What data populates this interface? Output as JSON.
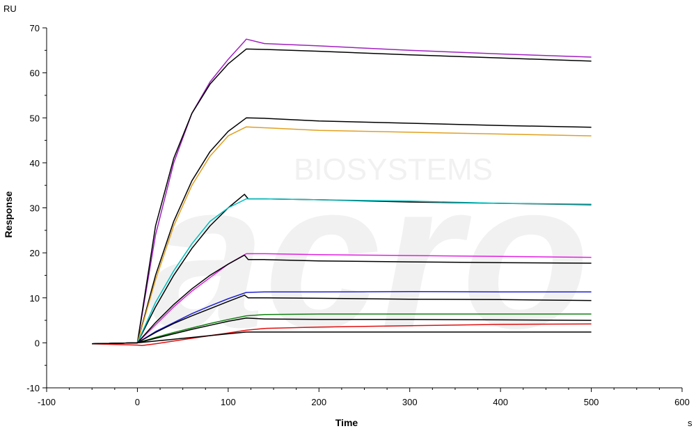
{
  "chart_data": {
    "type": "line",
    "xlabel": "Time",
    "ylabel": "Response",
    "x_unit": "s",
    "y_unit": "RU",
    "xlim": [
      -100,
      600
    ],
    "ylim": [
      -10,
      70
    ],
    "x_ticks": [
      -100,
      0,
      100,
      200,
      300,
      400,
      500,
      600
    ],
    "y_ticks": [
      -10,
      0,
      10,
      20,
      30,
      40,
      50,
      60,
      70
    ],
    "grid": false,
    "watermark": {
      "text": "BIOSYSTEMS",
      "logo": "acro"
    },
    "series": [
      {
        "color": "#a020c0",
        "x": [
          -50,
          0,
          20,
          40,
          60,
          80,
          100,
          118,
          120,
          140,
          200,
          300,
          400,
          500
        ],
        "y": [
          -0.2,
          0,
          24,
          40,
          51,
          58,
          63,
          67,
          67.5,
          66.5,
          66,
          65,
          64.2,
          63.5
        ]
      },
      {
        "color": "#000000",
        "x": [
          -50,
          0,
          20,
          40,
          60,
          80,
          100,
          120,
          140,
          200,
          300,
          400,
          500
        ],
        "y": [
          -0.2,
          0,
          26,
          41,
          51,
          57.5,
          62,
          65.3,
          65.2,
          64.8,
          64,
          63.3,
          62.6
        ]
      },
      {
        "color": "#000000",
        "x": [
          -50,
          0,
          20,
          40,
          60,
          80,
          100,
          120,
          140,
          200,
          300,
          400,
          500
        ],
        "y": [
          -0.2,
          0,
          15,
          27,
          36,
          42.5,
          47,
          50,
          49.9,
          49.3,
          48.8,
          48.3,
          47.9
        ]
      },
      {
        "color": "#e0a020",
        "x": [
          -50,
          0,
          20,
          40,
          60,
          80,
          100,
          120,
          140,
          200,
          300,
          400,
          500
        ],
        "y": [
          -0.2,
          0,
          14,
          26,
          35,
          41.5,
          46,
          48,
          47.8,
          47.2,
          46.8,
          46.4,
          46
        ]
      },
      {
        "color": "#000000",
        "x": [
          -50,
          0,
          20,
          40,
          60,
          80,
          100,
          118,
          122,
          140,
          200,
          300,
          400,
          500
        ],
        "y": [
          -0.2,
          0,
          8,
          15,
          21,
          26,
          30,
          33,
          32,
          32,
          31.8,
          31.3,
          31,
          30.7
        ]
      },
      {
        "color": "#00c0c0",
        "x": [
          -50,
          0,
          20,
          40,
          60,
          80,
          100,
          120,
          140,
          200,
          300,
          400,
          500
        ],
        "y": [
          -0.2,
          0,
          9,
          16,
          22,
          27,
          30,
          32,
          32,
          31.8,
          31.5,
          31,
          30.8
        ]
      },
      {
        "color": "#e020e0",
        "x": [
          -50,
          0,
          20,
          40,
          60,
          80,
          100,
          120,
          140,
          200,
          300,
          400,
          500
        ],
        "y": [
          -0.2,
          0,
          4,
          8,
          11.5,
          14.5,
          17.5,
          19.8,
          19.8,
          19.6,
          19.4,
          19.2,
          19
        ]
      },
      {
        "color": "#000000",
        "x": [
          -50,
          0,
          20,
          40,
          60,
          80,
          100,
          118,
          122,
          140,
          200,
          300,
          400,
          500
        ],
        "y": [
          -0.2,
          0,
          4.5,
          8.5,
          12,
          15,
          17.5,
          19.5,
          18.5,
          18.5,
          18.2,
          18,
          17.8,
          17.7
        ]
      },
      {
        "color": "#2020d0",
        "x": [
          -50,
          0,
          20,
          40,
          60,
          80,
          100,
          120,
          140,
          200,
          300,
          400,
          500
        ],
        "y": [
          -0.2,
          0,
          2.5,
          4.5,
          6.5,
          8.2,
          9.8,
          11.2,
          11.3,
          11.3,
          11.4,
          11.3,
          11.3
        ]
      },
      {
        "color": "#000000",
        "x": [
          -50,
          0,
          20,
          40,
          60,
          80,
          100,
          118,
          122,
          140,
          200,
          300,
          400,
          500
        ],
        "y": [
          -0.2,
          0,
          2.3,
          4.3,
          6,
          7.6,
          9.2,
          10.6,
          10,
          10,
          9.9,
          9.7,
          9.6,
          9.4
        ]
      },
      {
        "color": "#108010",
        "x": [
          -50,
          0,
          20,
          40,
          60,
          80,
          100,
          120,
          140,
          200,
          300,
          400,
          500
        ],
        "y": [
          -0.2,
          0,
          1.2,
          2.3,
          3.3,
          4.3,
          5.2,
          6,
          6.3,
          6.4,
          6.4,
          6.4,
          6.4
        ]
      },
      {
        "color": "#000000",
        "x": [
          -50,
          0,
          20,
          40,
          60,
          80,
          100,
          120,
          140,
          200,
          300,
          400,
          500
        ],
        "y": [
          -0.2,
          0,
          1,
          2,
          3,
          3.9,
          4.8,
          5.5,
          5.3,
          5.2,
          5.2,
          5.1,
          5
        ]
      },
      {
        "color": "#e01010",
        "x": [
          -50,
          0,
          5,
          20,
          40,
          60,
          80,
          100,
          120,
          140,
          200,
          300,
          400,
          500
        ],
        "y": [
          -0.2,
          -0.5,
          -0.6,
          -0.2,
          0.4,
          1,
          1.6,
          2.2,
          2.8,
          3.2,
          3.5,
          3.8,
          4.1,
          4.2
        ]
      },
      {
        "color": "#000000",
        "x": [
          -50,
          0,
          20,
          40,
          60,
          80,
          100,
          120,
          140,
          200,
          300,
          400,
          500
        ],
        "y": [
          -0.2,
          0,
          0.4,
          0.8,
          1.2,
          1.6,
          2,
          2.4,
          2.4,
          2.4,
          2.4,
          2.4,
          2.4
        ]
      }
    ]
  }
}
